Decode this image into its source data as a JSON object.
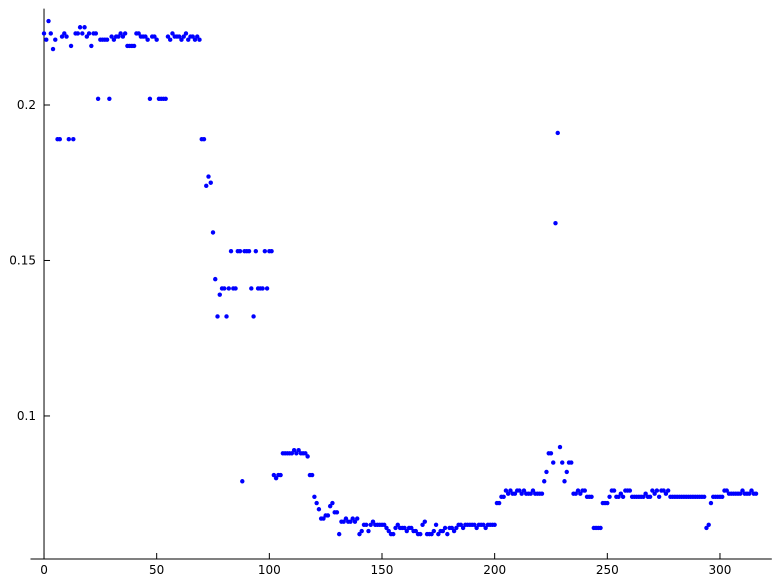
{
  "chart_data": {
    "type": "scatter",
    "color": "#0000ff",
    "xlim": [
      -6,
      323
    ],
    "ylim": [
      0.054,
      0.231
    ],
    "xticks": [
      0,
      50,
      100,
      150,
      200,
      250,
      300
    ],
    "yticks": [
      0.1,
      0.15,
      0.2
    ],
    "x": [
      0,
      1,
      2,
      3,
      4,
      5,
      6,
      7,
      8,
      9,
      10,
      11,
      12,
      13,
      14,
      15,
      16,
      17,
      18,
      19,
      20,
      21,
      22,
      23,
      24,
      25,
      26,
      27,
      28,
      29,
      30,
      31,
      32,
      33,
      34,
      35,
      36,
      37,
      38,
      39,
      40,
      41,
      42,
      43,
      44,
      45,
      46,
      47,
      48,
      49,
      50,
      51,
      52,
      53,
      54,
      55,
      56,
      57,
      58,
      59,
      60,
      61,
      62,
      63,
      64,
      65,
      66,
      67,
      68,
      69,
      70,
      71,
      72,
      73,
      74,
      75,
      76,
      77,
      78,
      79,
      80,
      81,
      82,
      83,
      84,
      85,
      86,
      87,
      88,
      89,
      90,
      91,
      92,
      93,
      94,
      95,
      96,
      97,
      98,
      99,
      100,
      101,
      102,
      103,
      104,
      105,
      106,
      107,
      108,
      109,
      110,
      111,
      112,
      113,
      114,
      115,
      116,
      117,
      118,
      119,
      120,
      121,
      122,
      123,
      124,
      125,
      126,
      127,
      128,
      129,
      130,
      131,
      132,
      133,
      134,
      135,
      136,
      137,
      138,
      139,
      140,
      141,
      142,
      143,
      144,
      145,
      146,
      147,
      148,
      149,
      150,
      151,
      152,
      153,
      154,
      155,
      156,
      157,
      158,
      159,
      160,
      161,
      162,
      163,
      164,
      165,
      166,
      167,
      168,
      169,
      170,
      171,
      172,
      173,
      174,
      175,
      176,
      177,
      178,
      179,
      180,
      181,
      182,
      183,
      184,
      185,
      186,
      187,
      188,
      189,
      190,
      191,
      192,
      193,
      194,
      195,
      196,
      197,
      198,
      199,
      200,
      201,
      202,
      203,
      204,
      205,
      206,
      207,
      208,
      209,
      210,
      211,
      212,
      213,
      214,
      215,
      216,
      217,
      218,
      219,
      220,
      221,
      222,
      223,
      224,
      225,
      226,
      227,
      228,
      229,
      230,
      231,
      232,
      233,
      234,
      235,
      236,
      237,
      238,
      239,
      240,
      241,
      242,
      243,
      244,
      245,
      246,
      247,
      248,
      249,
      250,
      251,
      252,
      253,
      254,
      255,
      256,
      257,
      258,
      259,
      260,
      261,
      262,
      263,
      264,
      265,
      266,
      267,
      268,
      269,
      270,
      271,
      272,
      273,
      274,
      275,
      276,
      277,
      278,
      279,
      280,
      281,
      282,
      283,
      284,
      285,
      286,
      287,
      288,
      289,
      290,
      291,
      292,
      293,
      294,
      295,
      296,
      297,
      298,
      299,
      300,
      301,
      302,
      303,
      304,
      305,
      306,
      307,
      308,
      309,
      310,
      311,
      312,
      313,
      314,
      315,
      316
    ],
    "values": [
      0.223,
      0.221,
      0.227,
      0.223,
      0.218,
      0.221,
      0.189,
      0.189,
      0.222,
      0.223,
      0.222,
      0.189,
      0.219,
      0.189,
      0.223,
      0.223,
      0.225,
      0.223,
      0.225,
      0.222,
      0.223,
      0.219,
      0.223,
      0.223,
      0.202,
      0.221,
      0.221,
      0.221,
      0.221,
      0.202,
      0.222,
      0.221,
      0.222,
      0.222,
      0.223,
      0.222,
      0.223,
      0.219,
      0.219,
      0.219,
      0.219,
      0.223,
      0.223,
      0.222,
      0.222,
      0.222,
      0.221,
      0.202,
      0.222,
      0.222,
      0.221,
      0.202,
      0.202,
      0.202,
      0.202,
      0.222,
      0.221,
      0.223,
      0.222,
      0.222,
      0.222,
      0.221,
      0.222,
      0.223,
      0.221,
      0.222,
      0.222,
      0.221,
      0.222,
      0.221,
      0.189,
      0.189,
      0.174,
      0.177,
      0.175,
      0.159,
      0.144,
      0.132,
      0.139,
      0.141,
      0.141,
      0.132,
      0.141,
      0.153,
      0.141,
      0.141,
      0.153,
      0.153,
      0.079,
      0.153,
      0.153,
      0.153,
      0.141,
      0.132,
      0.153,
      0.141,
      0.141,
      0.141,
      0.153,
      0.141,
      0.153,
      0.153,
      0.081,
      0.08,
      0.081,
      0.081,
      0.088,
      0.088,
      0.088,
      0.088,
      0.088,
      0.089,
      0.088,
      0.089,
      0.088,
      0.088,
      0.088,
      0.087,
      0.081,
      0.081,
      0.074,
      0.072,
      0.07,
      0.067,
      0.067,
      0.068,
      0.068,
      0.071,
      0.072,
      0.069,
      0.069,
      0.062,
      0.066,
      0.066,
      0.067,
      0.066,
      0.066,
      0.067,
      0.066,
      0.067,
      0.062,
      0.063,
      0.065,
      0.065,
      0.063,
      0.065,
      0.066,
      0.065,
      0.065,
      0.065,
      0.065,
      0.065,
      0.064,
      0.063,
      0.062,
      0.062,
      0.064,
      0.065,
      0.064,
      0.064,
      0.064,
      0.063,
      0.064,
      0.064,
      0.063,
      0.063,
      0.062,
      0.062,
      0.065,
      0.066,
      0.062,
      0.062,
      0.062,
      0.063,
      0.065,
      0.062,
      0.063,
      0.063,
      0.064,
      0.062,
      0.064,
      0.064,
      0.063,
      0.064,
      0.065,
      0.065,
      0.064,
      0.065,
      0.065,
      0.065,
      0.065,
      0.065,
      0.064,
      0.065,
      0.065,
      0.065,
      0.064,
      0.065,
      0.065,
      0.065,
      0.065,
      0.072,
      0.072,
      0.074,
      0.074,
      0.076,
      0.075,
      0.076,
      0.075,
      0.075,
      0.076,
      0.076,
      0.075,
      0.076,
      0.075,
      0.075,
      0.075,
      0.076,
      0.075,
      0.075,
      0.075,
      0.075,
      0.079,
      0.082,
      0.088,
      0.088,
      0.085,
      0.162,
      0.191,
      0.09,
      0.085,
      0.079,
      0.082,
      0.085,
      0.085,
      0.075,
      0.075,
      0.076,
      0.075,
      0.076,
      0.076,
      0.074,
      0.074,
      0.074,
      0.064,
      0.064,
      0.064,
      0.064,
      0.072,
      0.072,
      0.072,
      0.074,
      0.076,
      0.076,
      0.074,
      0.074,
      0.075,
      0.074,
      0.076,
      0.076,
      0.076,
      0.074,
      0.074,
      0.074,
      0.074,
      0.074,
      0.074,
      0.075,
      0.074,
      0.074,
      0.076,
      0.075,
      0.076,
      0.074,
      0.076,
      0.076,
      0.075,
      0.076,
      0.074,
      0.074,
      0.074,
      0.074,
      0.074,
      0.074,
      0.074,
      0.074,
      0.074,
      0.074,
      0.074,
      0.074,
      0.074,
      0.074,
      0.074,
      0.074,
      0.064,
      0.065,
      0.072,
      0.074,
      0.074,
      0.074,
      0.074,
      0.074,
      0.076,
      0.076,
      0.075,
      0.075,
      0.075,
      0.075,
      0.075,
      0.075,
      0.076,
      0.075,
      0.075,
      0.075,
      0.076,
      0.075,
      0.075
    ]
  }
}
